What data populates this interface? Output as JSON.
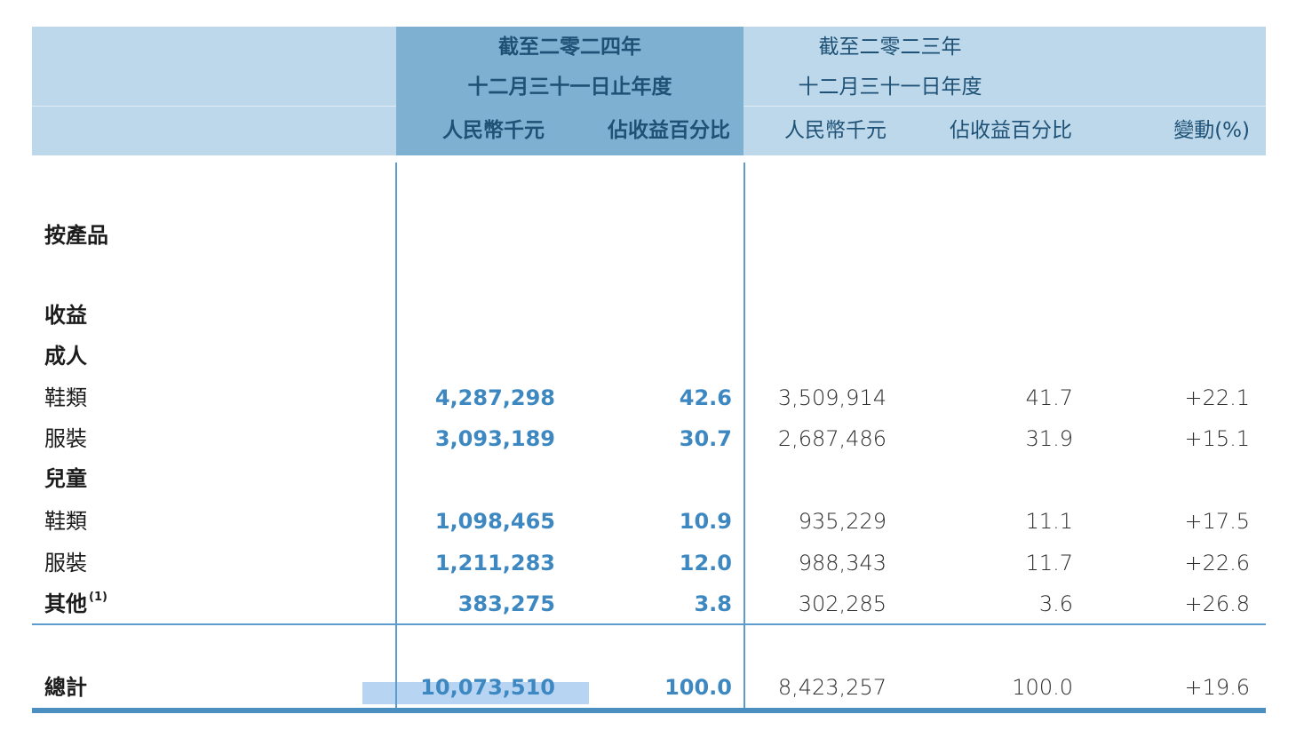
{
  "colors": {
    "header_bg_light": "#bcd8ea",
    "header_bg_dark": "#7eb0d2",
    "header_text": "#1e5175",
    "value_2024": "#3e88c2",
    "value_2023": "#2e2e2e",
    "label_text": "#1c1c1c",
    "rule_blue": "#4a8fc0",
    "line_blue": "#5b9bcd",
    "highlight": "#b7d4f2"
  },
  "header": {
    "group_2024": {
      "title_line1": "截至二零二四年",
      "title_line2": "十二月三十一日止年度",
      "col_amount": "人民幣千元",
      "col_percent": "佔收益百分比"
    },
    "group_2023": {
      "title_line1": "截至二零二三年",
      "title_line2": "十二月三十一日年度",
      "col_amount": "人民幣千元",
      "col_percent": "佔收益百分比"
    },
    "col_change": "變動(%)"
  },
  "rows": [
    {
      "label": "按產品",
      "a24": "",
      "p24": "",
      "a23": "",
      "p23": "",
      "chg": ""
    },
    {
      "label": "收益",
      "a24": "",
      "p24": "",
      "a23": "",
      "p23": "",
      "chg": ""
    },
    {
      "label": "成人",
      "a24": "",
      "p24": "",
      "a23": "",
      "p23": "",
      "chg": ""
    },
    {
      "label": "鞋類",
      "a24": "4,287,298",
      "p24": "42.6",
      "a23": "3,509,914",
      "p23": "41.7",
      "chg": "+22.1"
    },
    {
      "label": "服裝",
      "a24": "3,093,189",
      "p24": "30.7",
      "a23": "2,687,486",
      "p23": "31.9",
      "chg": "+15.1"
    },
    {
      "label": "兒童",
      "a24": "",
      "p24": "",
      "a23": "",
      "p23": "",
      "chg": ""
    },
    {
      "label": "鞋類",
      "a24": "1,098,465",
      "p24": "10.9",
      "a23": "935,229",
      "p23": "11.1",
      "chg": "+17.5"
    },
    {
      "label": "服裝",
      "a24": "1,211,283",
      "p24": "12.0",
      "a23": "988,343",
      "p23": "11.7",
      "chg": "+22.6"
    },
    {
      "label": "其他",
      "footnote": "(1)",
      "a24": "383,275",
      "p24": "3.8",
      "a23": "302,285",
      "p23": "3.6",
      "chg": "+26.8"
    },
    {
      "label": "總計",
      "a24": "10,073,510",
      "p24": "100.0",
      "a23": "8,423,257",
      "p23": "100.0",
      "chg": "+19.6"
    }
  ]
}
